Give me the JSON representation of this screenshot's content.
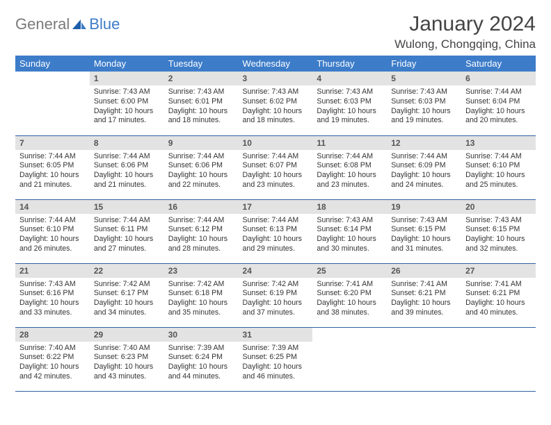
{
  "logo": {
    "word1": "General",
    "word2": "Blue"
  },
  "title": "January 2024",
  "location": "Wulong, Chongqing, China",
  "colors": {
    "header_bg": "#3d7cc9",
    "daynum_bg": "#e3e3e3",
    "row_border": "#2f5f9e",
    "logo_gray": "#7a7a7a",
    "logo_blue": "#3d7cc9"
  },
  "weekdays": [
    "Sunday",
    "Monday",
    "Tuesday",
    "Wednesday",
    "Thursday",
    "Friday",
    "Saturday"
  ],
  "start_offset": 1,
  "days": [
    {
      "n": 1,
      "sunrise": "7:43 AM",
      "sunset": "6:00 PM",
      "daylight": "10 hours and 17 minutes."
    },
    {
      "n": 2,
      "sunrise": "7:43 AM",
      "sunset": "6:01 PM",
      "daylight": "10 hours and 18 minutes."
    },
    {
      "n": 3,
      "sunrise": "7:43 AM",
      "sunset": "6:02 PM",
      "daylight": "10 hours and 18 minutes."
    },
    {
      "n": 4,
      "sunrise": "7:43 AM",
      "sunset": "6:03 PM",
      "daylight": "10 hours and 19 minutes."
    },
    {
      "n": 5,
      "sunrise": "7:43 AM",
      "sunset": "6:03 PM",
      "daylight": "10 hours and 19 minutes."
    },
    {
      "n": 6,
      "sunrise": "7:44 AM",
      "sunset": "6:04 PM",
      "daylight": "10 hours and 20 minutes."
    },
    {
      "n": 7,
      "sunrise": "7:44 AM",
      "sunset": "6:05 PM",
      "daylight": "10 hours and 21 minutes."
    },
    {
      "n": 8,
      "sunrise": "7:44 AM",
      "sunset": "6:06 PM",
      "daylight": "10 hours and 21 minutes."
    },
    {
      "n": 9,
      "sunrise": "7:44 AM",
      "sunset": "6:06 PM",
      "daylight": "10 hours and 22 minutes."
    },
    {
      "n": 10,
      "sunrise": "7:44 AM",
      "sunset": "6:07 PM",
      "daylight": "10 hours and 23 minutes."
    },
    {
      "n": 11,
      "sunrise": "7:44 AM",
      "sunset": "6:08 PM",
      "daylight": "10 hours and 23 minutes."
    },
    {
      "n": 12,
      "sunrise": "7:44 AM",
      "sunset": "6:09 PM",
      "daylight": "10 hours and 24 minutes."
    },
    {
      "n": 13,
      "sunrise": "7:44 AM",
      "sunset": "6:10 PM",
      "daylight": "10 hours and 25 minutes."
    },
    {
      "n": 14,
      "sunrise": "7:44 AM",
      "sunset": "6:10 PM",
      "daylight": "10 hours and 26 minutes."
    },
    {
      "n": 15,
      "sunrise": "7:44 AM",
      "sunset": "6:11 PM",
      "daylight": "10 hours and 27 minutes."
    },
    {
      "n": 16,
      "sunrise": "7:44 AM",
      "sunset": "6:12 PM",
      "daylight": "10 hours and 28 minutes."
    },
    {
      "n": 17,
      "sunrise": "7:44 AM",
      "sunset": "6:13 PM",
      "daylight": "10 hours and 29 minutes."
    },
    {
      "n": 18,
      "sunrise": "7:43 AM",
      "sunset": "6:14 PM",
      "daylight": "10 hours and 30 minutes."
    },
    {
      "n": 19,
      "sunrise": "7:43 AM",
      "sunset": "6:15 PM",
      "daylight": "10 hours and 31 minutes."
    },
    {
      "n": 20,
      "sunrise": "7:43 AM",
      "sunset": "6:15 PM",
      "daylight": "10 hours and 32 minutes."
    },
    {
      "n": 21,
      "sunrise": "7:43 AM",
      "sunset": "6:16 PM",
      "daylight": "10 hours and 33 minutes."
    },
    {
      "n": 22,
      "sunrise": "7:42 AM",
      "sunset": "6:17 PM",
      "daylight": "10 hours and 34 minutes."
    },
    {
      "n": 23,
      "sunrise": "7:42 AM",
      "sunset": "6:18 PM",
      "daylight": "10 hours and 35 minutes."
    },
    {
      "n": 24,
      "sunrise": "7:42 AM",
      "sunset": "6:19 PM",
      "daylight": "10 hours and 37 minutes."
    },
    {
      "n": 25,
      "sunrise": "7:41 AM",
      "sunset": "6:20 PM",
      "daylight": "10 hours and 38 minutes."
    },
    {
      "n": 26,
      "sunrise": "7:41 AM",
      "sunset": "6:21 PM",
      "daylight": "10 hours and 39 minutes."
    },
    {
      "n": 27,
      "sunrise": "7:41 AM",
      "sunset": "6:21 PM",
      "daylight": "10 hours and 40 minutes."
    },
    {
      "n": 28,
      "sunrise": "7:40 AM",
      "sunset": "6:22 PM",
      "daylight": "10 hours and 42 minutes."
    },
    {
      "n": 29,
      "sunrise": "7:40 AM",
      "sunset": "6:23 PM",
      "daylight": "10 hours and 43 minutes."
    },
    {
      "n": 30,
      "sunrise": "7:39 AM",
      "sunset": "6:24 PM",
      "daylight": "10 hours and 44 minutes."
    },
    {
      "n": 31,
      "sunrise": "7:39 AM",
      "sunset": "6:25 PM",
      "daylight": "10 hours and 46 minutes."
    }
  ],
  "labels": {
    "sunrise": "Sunrise:",
    "sunset": "Sunset:",
    "daylight": "Daylight:"
  }
}
